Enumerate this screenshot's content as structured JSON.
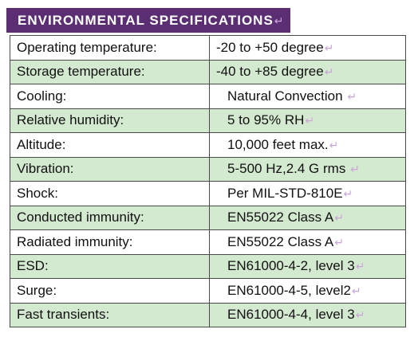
{
  "header": {
    "title": "ENVIRONMENTAL SPECIFICATIONS",
    "mark": "↵"
  },
  "rows": [
    {
      "label": "Operating temperature:",
      "value": "-20  to +50 degree",
      "mark": "↵"
    },
    {
      "label": "Storage temperature:",
      "value": "-40  to +85 degree",
      "mark": "↵"
    },
    {
      "label": "Cooling:",
      "value": "Natural Convection ",
      "mark": "↵"
    },
    {
      "label": "Relative humidity:",
      "value": "5 to 95% RH",
      "mark": "↵"
    },
    {
      "label": "Altitude:",
      "value": "10,000 feet max.",
      "mark": "↵"
    },
    {
      "label": "Vibration:",
      "value": "5-500 Hz,2.4 G rms ",
      "mark": "↵"
    },
    {
      "label": "Shock:",
      "value": "Per MIL-STD-810E",
      "mark": "↵"
    },
    {
      "label": "Conducted immunity:",
      "value": "EN55022 Class A",
      "mark": "↵"
    },
    {
      "label": "Radiated immunity:",
      "value": "EN55022 Class A",
      "mark": "↵"
    },
    {
      "label": "ESD:",
      "value": "EN61000-4-2, level 3",
      "mark": "↵"
    },
    {
      "label": "Surge:",
      "value": "EN61000-4-5, level2",
      "mark": "↵"
    },
    {
      "label": "Fast transients:",
      "value": "EN61000-4-4, level 3",
      "mark": "↵"
    }
  ],
  "colors": {
    "header_bg": "#5b2e74",
    "shade_row": "#d4ead0",
    "border": "#4a4a4a"
  }
}
